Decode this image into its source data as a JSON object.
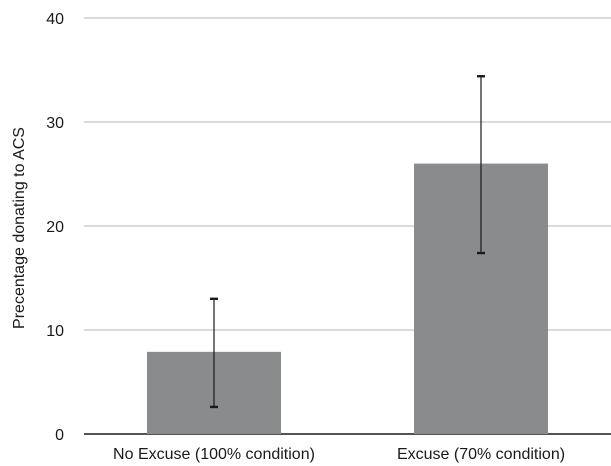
{
  "chart_data": {
    "type": "bar",
    "title": "",
    "xlabel": "",
    "ylabel": "Precentage donating to ACS",
    "categories": [
      "No Excuse (100% condition)",
      "Excuse (70% condition)"
    ],
    "values": [
      7.9,
      26.0
    ],
    "error_bars": [
      {
        "low": 2.6,
        "high": 13.0
      },
      {
        "low": 17.4,
        "high": 34.4
      }
    ],
    "ylim": [
      0,
      40
    ],
    "yticks": [
      "0",
      "10",
      "20",
      "30",
      "40"
    ],
    "grid": true,
    "legend": "none",
    "bar_color": "#8a8b8d",
    "grid_color": "#b5b5b5",
    "error_bar_color": "#1a1a1a"
  }
}
